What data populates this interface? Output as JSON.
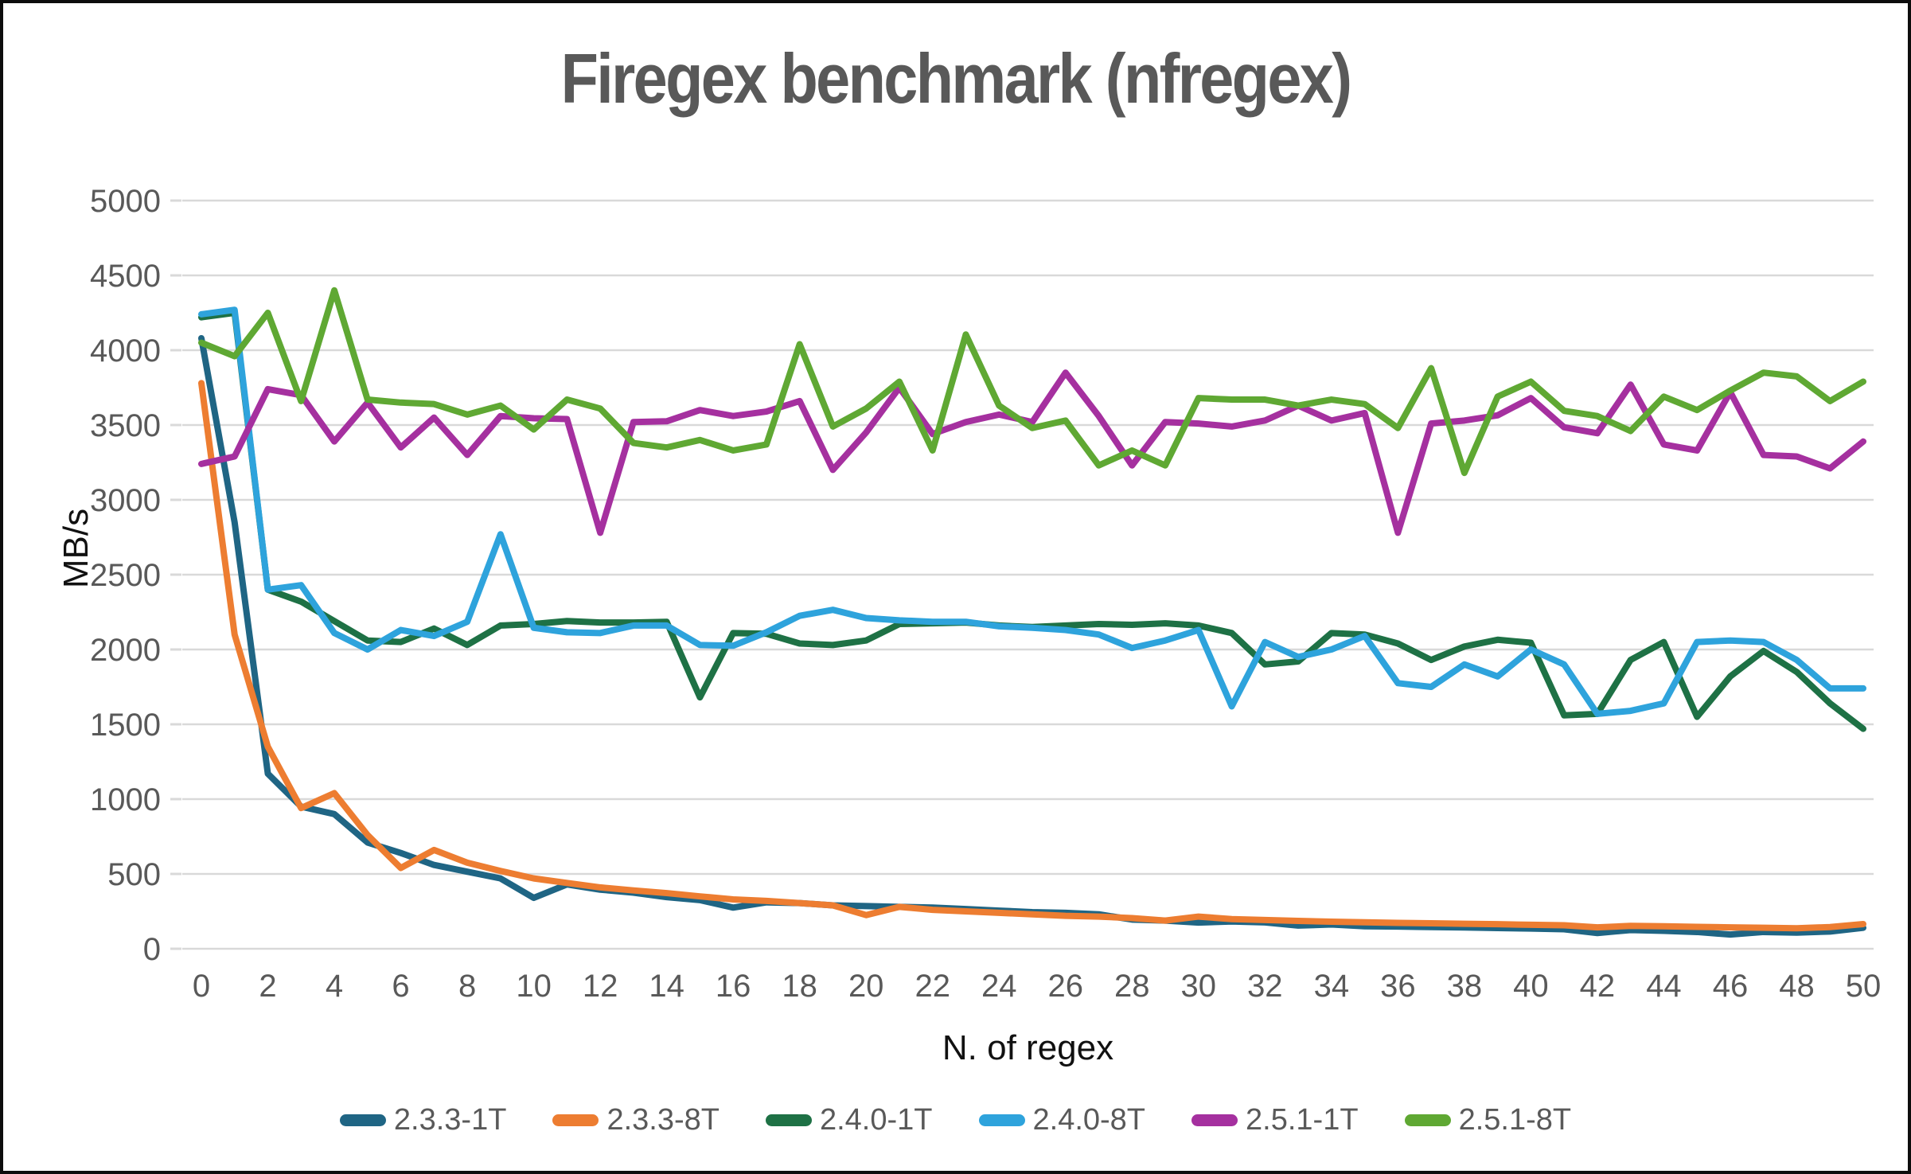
{
  "chart_data": {
    "type": "line",
    "title": "Firegex benchmark (nfregex)",
    "xlabel": "N. of regex",
    "ylabel": "MB/s",
    "xlim": [
      0,
      50
    ],
    "x_tick_step": 2,
    "ylim": [
      0,
      5000
    ],
    "y_tick_step": 500,
    "grid": "horizontal",
    "legend_position": "bottom",
    "x": [
      0,
      1,
      2,
      3,
      4,
      5,
      6,
      7,
      8,
      9,
      10,
      11,
      12,
      13,
      14,
      15,
      16,
      17,
      18,
      19,
      20,
      21,
      22,
      23,
      24,
      25,
      26,
      27,
      28,
      29,
      30,
      31,
      32,
      33,
      34,
      35,
      36,
      37,
      38,
      39,
      40,
      41,
      42,
      43,
      44,
      45,
      46,
      47,
      48,
      49,
      50
    ],
    "series": [
      {
        "name": "2.3.3-1T",
        "color": "#1F6584",
        "values": [
          4080,
          2850,
          1170,
          950,
          900,
          710,
          640,
          560,
          515,
          470,
          340,
          430,
          395,
          375,
          345,
          325,
          275,
          310,
          305,
          290,
          285,
          280,
          275,
          265,
          255,
          245,
          240,
          230,
          195,
          188,
          175,
          182,
          176,
          155,
          162,
          150,
          148,
          145,
          142,
          138,
          135,
          130,
          105,
          125,
          120,
          112,
          95,
          112,
          108,
          115,
          140
        ]
      },
      {
        "name": "2.3.3-8T",
        "color": "#ED7D31",
        "values": [
          3780,
          2100,
          1350,
          940,
          1040,
          760,
          540,
          660,
          575,
          520,
          470,
          440,
          410,
          390,
          372,
          350,
          330,
          320,
          305,
          290,
          225,
          280,
          260,
          250,
          240,
          230,
          220,
          215,
          205,
          188,
          215,
          198,
          192,
          186,
          181,
          177,
          173,
          170,
          167,
          164,
          160,
          157,
          143,
          153,
          150,
          146,
          143,
          140,
          137,
          145,
          165
        ]
      },
      {
        "name": "2.4.0-1T",
        "color": "#1E7145",
        "values": [
          4220,
          4250,
          2400,
          2320,
          2190,
          2060,
          2050,
          2140,
          2030,
          2160,
          2170,
          2190,
          2180,
          2180,
          2185,
          1680,
          2110,
          2105,
          2040,
          2030,
          2060,
          2170,
          2175,
          2180,
          2160,
          2150,
          2160,
          2170,
          2165,
          2175,
          2160,
          2110,
          1900,
          1920,
          2110,
          2100,
          2040,
          1930,
          2020,
          2065,
          2045,
          1560,
          1570,
          1930,
          2050,
          1550,
          1820,
          1990,
          1850,
          1640,
          1470
        ]
      },
      {
        "name": "2.4.0-8T",
        "color": "#2EA3DC",
        "values": [
          4240,
          4270,
          2400,
          2430,
          2110,
          2000,
          2130,
          2090,
          2185,
          2770,
          2145,
          2115,
          2110,
          2160,
          2160,
          2030,
          2025,
          2115,
          2225,
          2265,
          2210,
          2195,
          2185,
          2185,
          2155,
          2145,
          2130,
          2100,
          2010,
          2060,
          2130,
          1620,
          2050,
          1950,
          2000,
          2090,
          1775,
          1750,
          1900,
          1820,
          2000,
          1900,
          1570,
          1590,
          1640,
          2050,
          2060,
          2050,
          1930,
          1740,
          1740
        ]
      },
      {
        "name": "2.5.1-1T",
        "color": "#A5309F",
        "values": [
          3240,
          3290,
          3740,
          3700,
          3390,
          3650,
          3350,
          3550,
          3300,
          3560,
          3545,
          3540,
          2780,
          3520,
          3525,
          3600,
          3560,
          3590,
          3660,
          3200,
          3450,
          3750,
          3440,
          3520,
          3570,
          3520,
          3850,
          3560,
          3230,
          3520,
          3510,
          3490,
          3530,
          3630,
          3530,
          3580,
          2780,
          3510,
          3530,
          3565,
          3680,
          3485,
          3445,
          3770,
          3370,
          3330,
          3720,
          3300,
          3290,
          3210,
          3390
        ]
      },
      {
        "name": "2.5.1-8T",
        "color": "#5FA833",
        "values": [
          4050,
          3960,
          4250,
          3660,
          4400,
          3670,
          3650,
          3640,
          3570,
          3630,
          3470,
          3670,
          3610,
          3380,
          3350,
          3400,
          3330,
          3370,
          4040,
          3490,
          3610,
          3790,
          3330,
          4105,
          3630,
          3480,
          3530,
          3230,
          3330,
          3230,
          3680,
          3670,
          3670,
          3630,
          3670,
          3640,
          3480,
          3880,
          3180,
          3690,
          3790,
          3595,
          3560,
          3460,
          3690,
          3600,
          3730,
          3850,
          3825,
          3660,
          3790
        ]
      }
    ],
    "style": {
      "grid_color": "#D9D9D9",
      "tick_label_color": "#595959",
      "title_color": "#595959",
      "axis_title_color": "#111111",
      "background": "#ffffff",
      "border_color": "#0d0d0d",
      "line_width": 8
    }
  }
}
